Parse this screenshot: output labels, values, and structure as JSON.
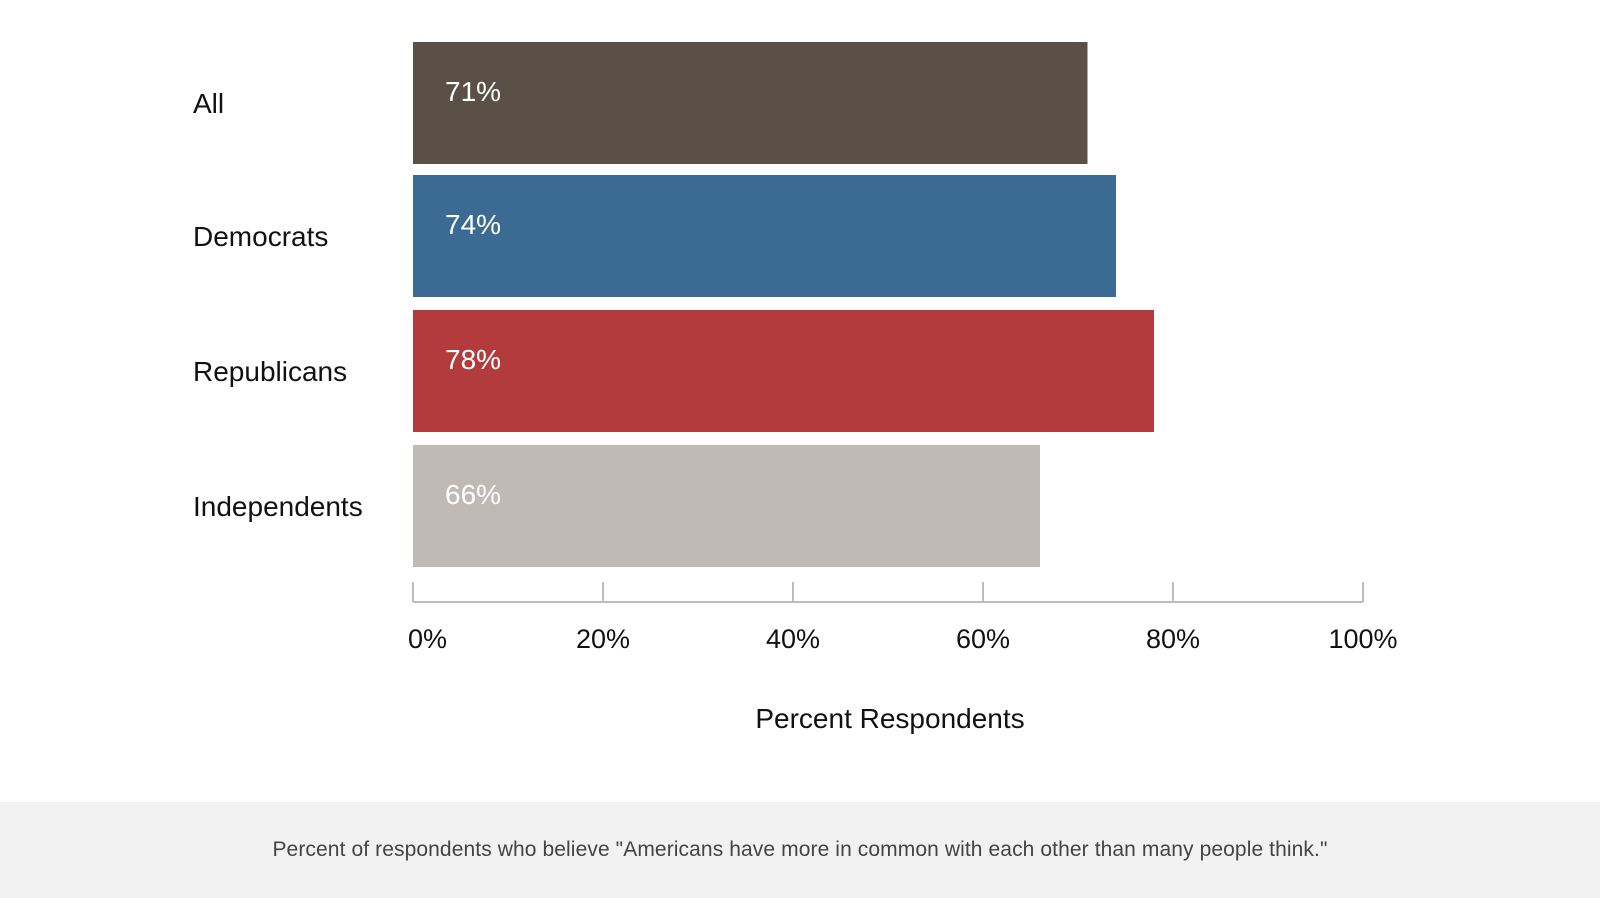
{
  "caption": "Percent of respondents who believe \"Americans have more in common with each other than many people think.\"",
  "chart_data": {
    "type": "bar",
    "orientation": "horizontal",
    "categories": [
      "All",
      "Democrats",
      "Republicans",
      "Independents"
    ],
    "values": [
      71,
      74,
      78,
      66
    ],
    "value_labels": [
      "71%",
      "74%",
      "78%",
      "66%"
    ],
    "colors": [
      "#5a5045",
      "#3b6a93",
      "#b43b3d",
      "#bfbab3"
    ],
    "xlabel": "Percent Respondents",
    "ylabel": "",
    "xlim": [
      0,
      100
    ],
    "xticks": [
      0,
      20,
      40,
      60,
      80,
      100
    ],
    "xtick_labels": [
      "0%",
      "20%",
      "40%",
      "60%",
      "80%",
      "100%"
    ],
    "grid": false,
    "legend": "none"
  }
}
